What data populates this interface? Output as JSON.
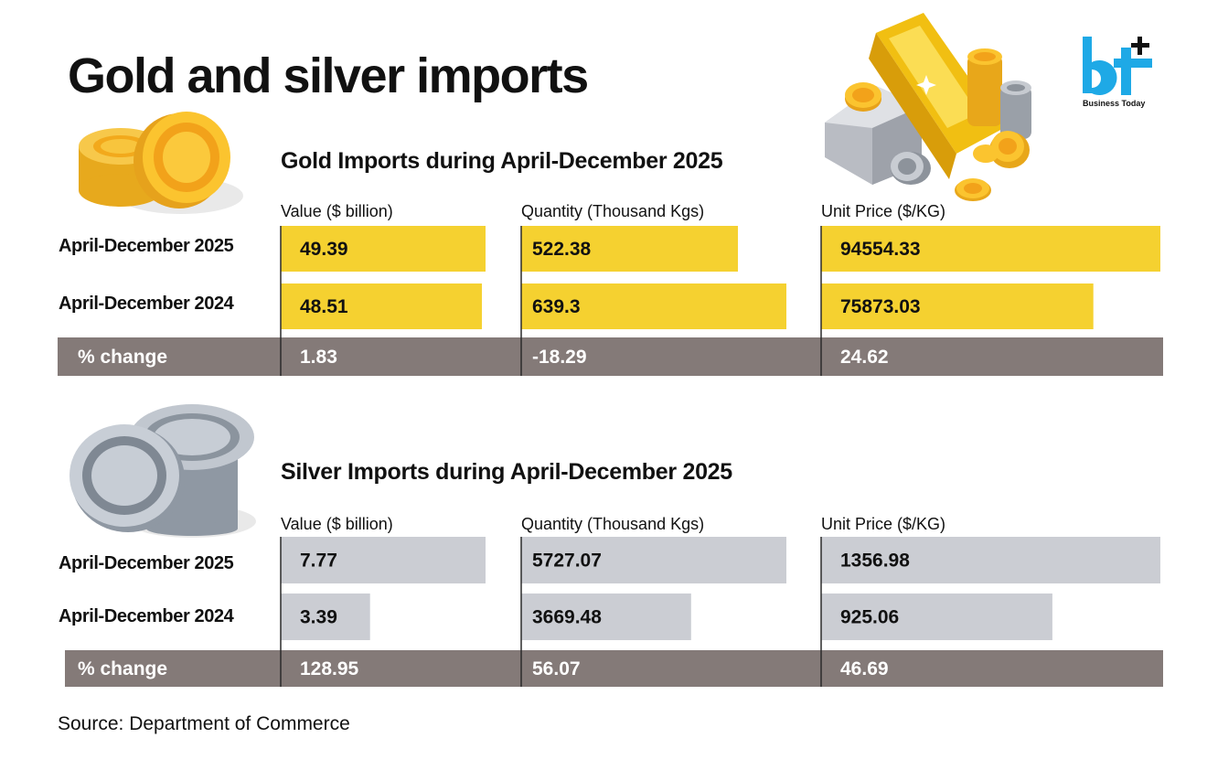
{
  "title": "Gold and silver imports",
  "logo": {
    "mark": "bt",
    "sub": "Business Today"
  },
  "columns": [
    "Value ($ billion)",
    "Quantity (Thousand Kgs)",
    "Unit Price ($/KG)"
  ],
  "source": "Source: Department of Commerce",
  "colors": {
    "gold_bar": "#f5d130",
    "silver_bar": "#cbcdd3",
    "change_band": "#847a78",
    "logo_blue": "#1ea9e6"
  },
  "chart_data": [
    {
      "type": "bar",
      "title": "Gold Imports during April-December 2025",
      "categories": [
        "Value ($ billion)",
        "Quantity (Thousand Kgs)",
        "Unit Price ($/KG)"
      ],
      "series": [
        {
          "name": "April-December 2025",
          "values": [
            49.39,
            522.38,
            94554.33
          ],
          "labels": [
            "49.39",
            "522.38",
            "94554.33"
          ]
        },
        {
          "name": "April-December 2024",
          "values": [
            48.51,
            639.3,
            75873.03
          ],
          "labels": [
            "48.51",
            "639.3",
            "75873.03"
          ]
        }
      ],
      "change": {
        "label": "% change",
        "values": [
          "1.83",
          "-18.29",
          "24.62"
        ]
      }
    },
    {
      "type": "bar",
      "title": "Silver Imports during April-December 2025",
      "categories": [
        "Value ($ billion)",
        "Quantity (Thousand Kgs)",
        "Unit Price ($/KG)"
      ],
      "series": [
        {
          "name": "April-December 2025",
          "values": [
            7.77,
            5727.07,
            1356.98
          ],
          "labels": [
            "7.77",
            "5727.07",
            "1356.98"
          ]
        },
        {
          "name": "April-December 2024",
          "values": [
            3.39,
            3669.48,
            925.06
          ],
          "labels": [
            "3.39",
            "3669.48",
            "925.06"
          ]
        }
      ],
      "change": {
        "label": "% change",
        "values": [
          "128.95",
          "56.07",
          "46.69"
        ]
      }
    }
  ]
}
